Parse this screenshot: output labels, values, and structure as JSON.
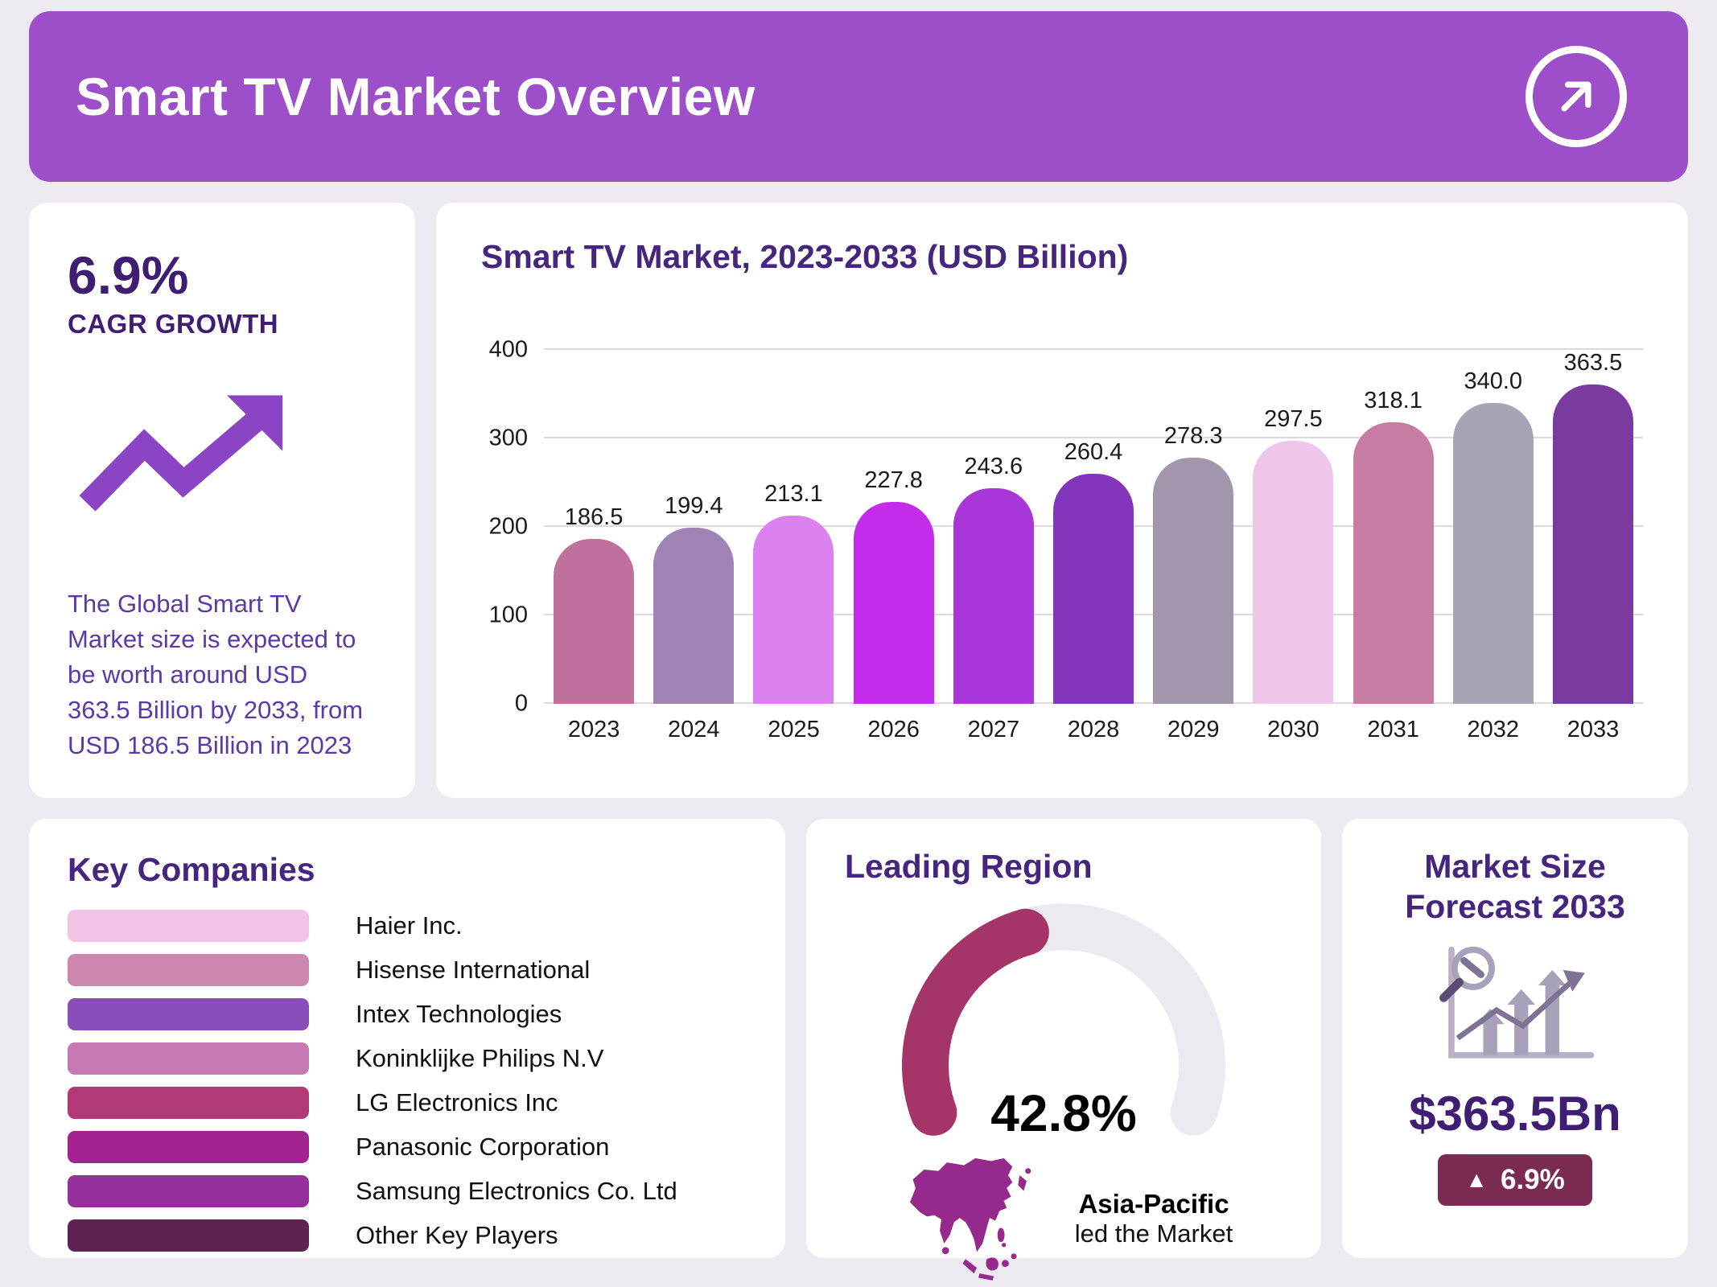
{
  "header": {
    "title": "Smart TV Market Overview",
    "bg": "#9c4fc9"
  },
  "cagr": {
    "value": "6.9%",
    "label": "CAGR GROWTH",
    "description": "The Global Smart TV Market size is expected to be worth around USD 363.5 Billion by 2033, from USD 186.5 Billion in 2023",
    "arrow_color": "#8b44c4"
  },
  "chart_data": [
    {
      "type": "bar",
      "title": "Smart TV Market, 2023-2033 (USD Billion)",
      "categories": [
        "2023",
        "2024",
        "2025",
        "2026",
        "2027",
        "2028",
        "2029",
        "2030",
        "2031",
        "2032",
        "2033"
      ],
      "values": [
        186.5,
        199.4,
        213.1,
        227.8,
        243.6,
        260.4,
        278.3,
        297.5,
        318.1,
        340.0,
        363.5
      ],
      "bar_colors": [
        "#c0709d",
        "#a083b5",
        "#dc82f0",
        "#c32cea",
        "#a836d8",
        "#8136bb",
        "#a296ad",
        "#efc6e9",
        "#c77da3",
        "#a9a4b4",
        "#7b3a9e"
      ],
      "xlabel": "",
      "ylabel": "",
      "ylim": [
        0,
        400
      ],
      "yticks": [
        0,
        100,
        200,
        300,
        400
      ],
      "grid": true,
      "legend": false,
      "value_labels": true
    },
    {
      "type": "gauge",
      "title": "Leading Region",
      "value": 42.8,
      "max": 100,
      "label": "42.8%",
      "region": "Asia-Pacific",
      "caption": "led the Market",
      "fill_color": "#a53568",
      "track_color": "#ece9f0",
      "map_color": "#962a8c"
    }
  ],
  "key_companies": {
    "title": "Key Companies",
    "items": [
      {
        "label": "Haier Inc.",
        "color": "#f2c3e7"
      },
      {
        "label": "Hisense International",
        "color": "#cd87ae"
      },
      {
        "label": "Intex Technologies",
        "color": "#8a4cb9"
      },
      {
        "label": "Koninklijke Philips N.V",
        "color": "#c678b2"
      },
      {
        "label": "LG Electronics Inc",
        "color": "#b03a78"
      },
      {
        "label": "Panasonic Corporation",
        "color": "#a2238f"
      },
      {
        "label": "Samsung Electronics Co. Ltd",
        "color": "#93309b"
      },
      {
        "label": "Other Key Players",
        "color": "#5e2350"
      }
    ]
  },
  "forecast": {
    "title": "Market Size Forecast 2033",
    "value": "$363.5Bn",
    "badge_icon": "▲",
    "badge_label": "6.9%",
    "badge_bg": "#7b2a52"
  }
}
